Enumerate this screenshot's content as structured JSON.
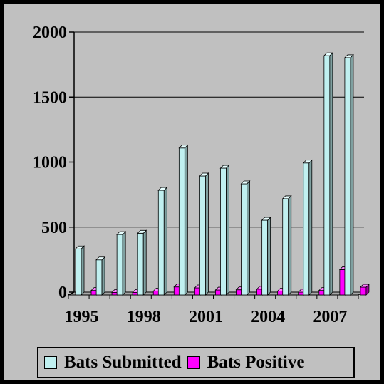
{
  "chart_data": {
    "type": "bar",
    "title": "",
    "xlabel": "",
    "ylabel": "",
    "ylim": [
      0,
      2000
    ],
    "yticks": [
      0,
      500,
      1000,
      1500,
      2000
    ],
    "categories": [
      "1995",
      "1996",
      "1997",
      "1998",
      "1999",
      "2000",
      "2001",
      "2002",
      "2003",
      "2004",
      "2005",
      "2006",
      "2007",
      "2008"
    ],
    "xtick_labels": [
      "1995",
      "1998",
      "2001",
      "2004",
      "2007"
    ],
    "series": [
      {
        "name": "Bats Submitted",
        "color": "#c0f0f0",
        "values": [
          355,
          270,
          465,
          475,
          805,
          1130,
          915,
          975,
          855,
          575,
          740,
          1015,
          1840,
          1825
        ]
      },
      {
        "name": "Bats Positive",
        "color": "#ff00ff",
        "values": [
          35,
          20,
          20,
          30,
          62,
          55,
          38,
          40,
          45,
          30,
          22,
          35,
          195,
          60
        ]
      }
    ],
    "grid": true,
    "legend": "bottom"
  }
}
